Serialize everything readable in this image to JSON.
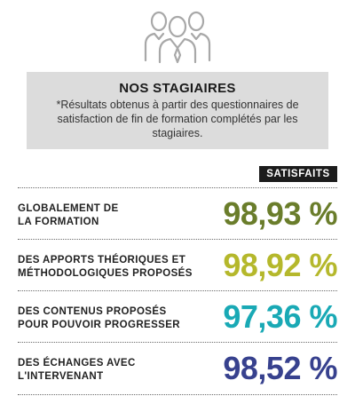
{
  "header": {
    "icon": "people-group-icon",
    "title": "NOS STAGIAIRES",
    "note": "*Résultats obtenus à partir des questionnaires de satisfaction de fin de formation complétés par les stagiaires."
  },
  "column_label": "SATISFAITS",
  "rows": [
    {
      "label_line1": "GLOBALEMENT DE",
      "label_line2": "LA FORMATION",
      "value": "98,93 %",
      "color": "#6a7d2b"
    },
    {
      "label_line1": "DES APPORTS THÉORIQUES ET",
      "label_line2": "MÉTHODOLOGIQUES PROPOSÉS",
      "value": "98,92 %",
      "color": "#b5b82c"
    },
    {
      "label_line1": "DES CONTENUS PROPOSÉS",
      "label_line2": "POUR POUVOIR PROGRESSER",
      "value": "97,36 %",
      "color": "#19a9b5"
    },
    {
      "label_line1": "DES ÉCHANGES AVEC",
      "label_line2": "L'INTERVENANT",
      "value": "98,52 %",
      "color": "#37418e"
    }
  ]
}
